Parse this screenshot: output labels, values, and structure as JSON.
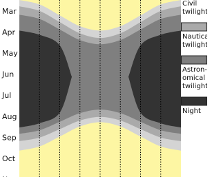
{
  "chart_data": {
    "type": "band",
    "categories": [
      "Mar",
      "Apr",
      "May",
      "Jun",
      "Jul",
      "Aug",
      "Sep",
      "Oct",
      "Nov"
    ],
    "xlim": [
      0,
      8
    ],
    "xticks": [
      1,
      2,
      3,
      4,
      5,
      6,
      7
    ],
    "ylim": [
      -0.55,
      7.85
    ],
    "grid": true,
    "background": "#fdf6a3",
    "series": [
      {
        "name": "Civil twilight",
        "color": "#d4d4d4",
        "x": [
          0,
          1,
          2,
          3,
          4,
          5,
          6,
          7,
          8
        ],
        "top": [
          -0.55,
          -0.34,
          0.18,
          0.69,
          0.9,
          0.69,
          0.18,
          -0.34,
          -0.55
        ],
        "bottom": [
          6.6,
          6.4,
          5.93,
          5.45,
          5.25,
          5.45,
          5.93,
          6.4,
          6.6
        ]
      },
      {
        "name": "Nautical twilight",
        "color": "#aaaaaa",
        "x": [
          0,
          1,
          2,
          3,
          4,
          5,
          6,
          7,
          8
        ],
        "top": [
          -0.25,
          -0.03,
          0.5,
          1.03,
          1.25,
          1.03,
          0.5,
          -0.03,
          -0.25
        ],
        "bottom": [
          6.15,
          5.98,
          5.58,
          5.17,
          5.0,
          5.17,
          5.58,
          5.98,
          6.15
        ]
      },
      {
        "name": "Astron-omical twilight",
        "color": "#7f7f7f",
        "x": [
          0,
          1,
          2,
          3,
          4,
          5,
          6,
          7,
          8
        ],
        "top": [
          0.15,
          0.35,
          0.85,
          1.35,
          1.55,
          1.35,
          0.85,
          0.35,
          0.15
        ],
        "bottom": [
          5.8,
          5.63,
          5.23,
          4.82,
          4.65,
          4.82,
          5.23,
          5.63,
          5.8
        ]
      },
      {
        "name": "Night",
        "color": "#333333",
        "x": [
          0,
          1,
          2,
          2.6,
          4,
          5.4,
          6,
          7,
          8
        ],
        "top": [
          0.9,
          1.1,
          1.6,
          3.1,
          null,
          3.1,
          1.6,
          1.1,
          0.9
        ],
        "bottom": [
          5.5,
          5.3,
          4.8,
          3.1,
          null,
          3.1,
          4.8,
          5.3,
          5.5
        ]
      }
    ]
  }
}
